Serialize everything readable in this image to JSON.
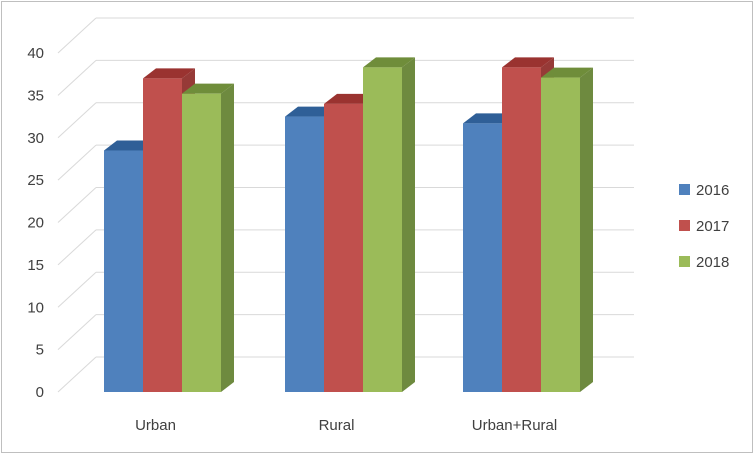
{
  "chart_data": {
    "type": "bar",
    "title": "",
    "xlabel": "",
    "ylabel": "",
    "categories": [
      "Urban",
      "Rural",
      "Urban+Rural"
    ],
    "series": [
      {
        "name": "2016",
        "values": [
          28.5,
          32.5,
          31.7
        ],
        "color": "#4f81bd",
        "top_color": "#2f5f97",
        "side_color": "#3a6494"
      },
      {
        "name": "2017",
        "values": [
          37.0,
          34.0,
          38.3
        ],
        "color": "#c0504d",
        "top_color": "#9a3330",
        "side_color": "#963a37"
      },
      {
        "name": "2018",
        "values": [
          35.2,
          38.3,
          37.1
        ],
        "color": "#9bbb59",
        "top_color": "#6f8d3a",
        "side_color": "#6e8a3f"
      }
    ],
    "ylim": [
      0,
      40
    ],
    "yticks": [
      0,
      5,
      10,
      15,
      20,
      25,
      30,
      35,
      40
    ],
    "grid": true,
    "legend": "right",
    "view": "3d-column",
    "gridline_color": "#d9d9d9"
  }
}
